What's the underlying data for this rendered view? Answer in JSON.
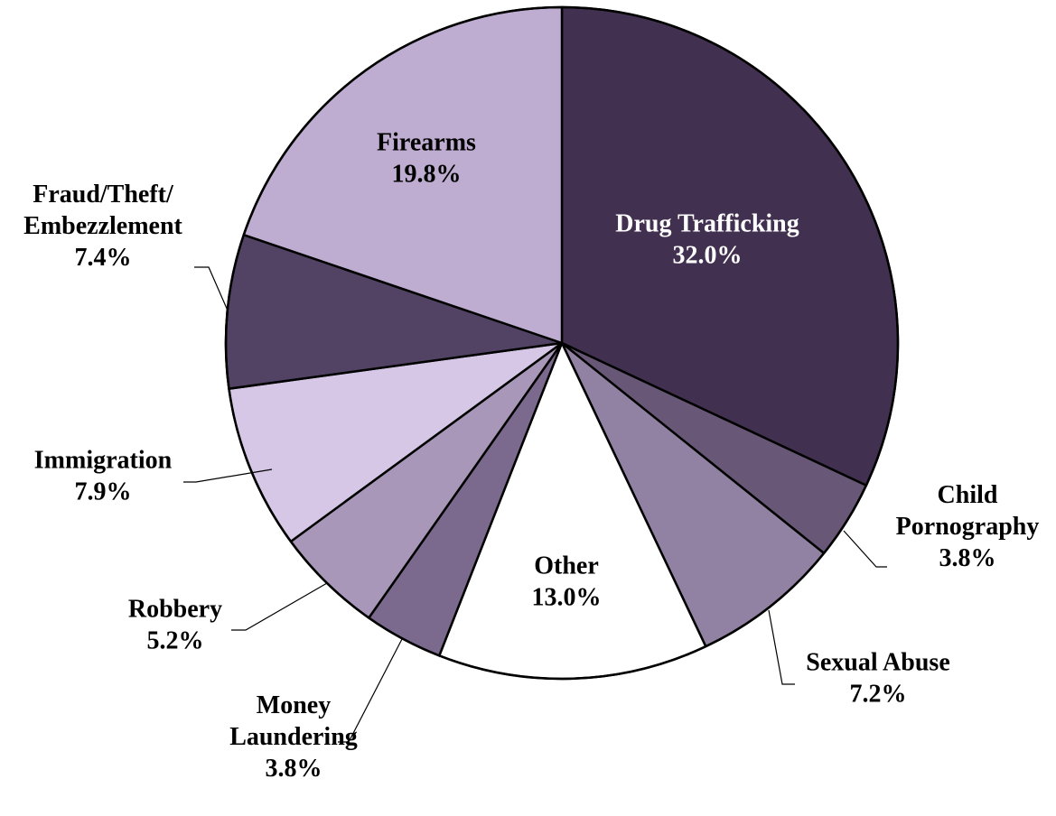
{
  "chart_data": {
    "type": "pie",
    "title": "",
    "start_angle_deg": 0,
    "direction": "clockwise",
    "slices": [
      {
        "lines": [
          "Drug Trafficking"
        ],
        "value": 32.0,
        "pct": "32.0%",
        "color": "#41304f",
        "text_color": "#ffffff"
      },
      {
        "lines": [
          "Child",
          "Pornography"
        ],
        "value": 3.8,
        "pct": "3.8%",
        "color": "#685776",
        "text_color": "#000000"
      },
      {
        "lines": [
          "Sexual Abuse"
        ],
        "value": 7.2,
        "pct": "7.2%",
        "color": "#9181a2",
        "text_color": "#000000"
      },
      {
        "lines": [
          "Other"
        ],
        "value": 13.0,
        "pct": "13.0%",
        "color": "#ffffff",
        "text_color": "#000000"
      },
      {
        "lines": [
          "Money",
          "Laundering"
        ],
        "value": 3.8,
        "pct": "3.8%",
        "color": "#7b698e",
        "text_color": "#000000"
      },
      {
        "lines": [
          "Robbery"
        ],
        "value": 5.2,
        "pct": "5.2%",
        "color": "#a897b8",
        "text_color": "#000000"
      },
      {
        "lines": [
          "Immigration"
        ],
        "value": 7.9,
        "pct": "7.9%",
        "color": "#d6c7e7",
        "text_color": "#000000"
      },
      {
        "lines": [
          "Fraud/Theft/",
          "Embezzlement"
        ],
        "value": 7.4,
        "pct": "7.4%",
        "color": "#524263",
        "text_color": "#000000"
      },
      {
        "lines": [
          "Firearms"
        ],
        "value": 19.8,
        "pct": "19.8%",
        "color": "#bfadd1",
        "text_color": "#000000"
      }
    ]
  }
}
